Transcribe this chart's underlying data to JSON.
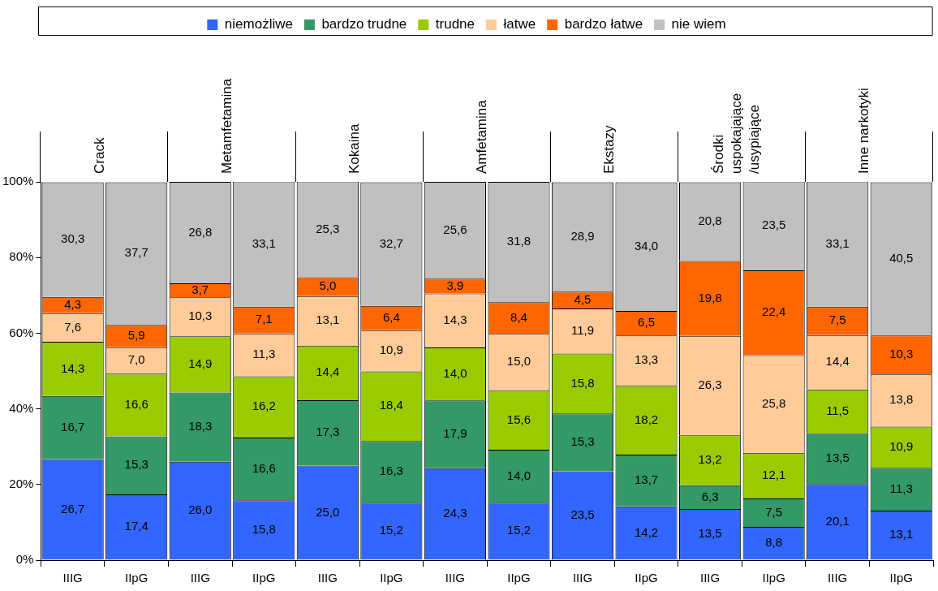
{
  "chart_data": {
    "type": "bar",
    "stacked": true,
    "legend": "top",
    "grid": false,
    "categories": [
      "IIIG",
      "IIpG",
      "IIIG",
      "IIpG",
      "IIIG",
      "IIpG",
      "IIIG",
      "IIpG",
      "IIIG",
      "IIpG",
      "IIIG",
      "IIpG",
      "IIIG",
      "IIpG"
    ],
    "annotations": [
      "Crack",
      "Metamfetamina",
      "Kokaina",
      "Amfetamina",
      "Ekstazy",
      "Środki\nuspokajające\n/usypiające",
      "Inne narkotyki"
    ],
    "ylim": [
      0,
      100
    ],
    "yticks": [
      {
        "value": 0,
        "label": "0%"
      },
      {
        "value": 20,
        "label": "20%"
      },
      {
        "value": 40,
        "label": "40%"
      },
      {
        "value": 60,
        "label": "60%"
      },
      {
        "value": 80,
        "label": "80%"
      },
      {
        "value": 100,
        "label": "100%"
      }
    ],
    "series": [
      {
        "name": "niemożliwe",
        "color": "#3366ff",
        "values": [
          26.7,
          17.4,
          26.0,
          15.8,
          25.0,
          15.2,
          24.3,
          15.2,
          23.5,
          14.2,
          13.5,
          8.8,
          20.1,
          13.1
        ],
        "value_labels": [
          "26,7",
          "17,4",
          "26,0",
          "15,8",
          "25,0",
          "15,2",
          "24,3",
          "15,2",
          "23,5",
          "14,2",
          "13,5",
          "8,8",
          "20,1",
          "13,1"
        ]
      },
      {
        "name": "bardzo trudne",
        "color": "#339966",
        "values": [
          16.7,
          15.3,
          18.3,
          16.6,
          17.3,
          16.3,
          17.9,
          14.0,
          15.3,
          13.7,
          6.3,
          7.5,
          13.5,
          11.3
        ],
        "value_labels": [
          "16,7",
          "15,3",
          "18,3",
          "16,6",
          "17,3",
          "16,3",
          "17,9",
          "14,0",
          "15,3",
          "13,7",
          "6,3",
          "7,5",
          "13,5",
          "11,3"
        ]
      },
      {
        "name": "trudne",
        "color": "#99cc00",
        "values": [
          14.3,
          16.6,
          14.9,
          16.2,
          14.4,
          18.4,
          14.0,
          15.6,
          15.8,
          18.2,
          13.2,
          12.1,
          11.5,
          10.9
        ],
        "value_labels": [
          "14,3",
          "16,6",
          "14,9",
          "16,2",
          "14,4",
          "18,4",
          "14,0",
          "15,6",
          "15,8",
          "18,2",
          "13,2",
          "12,1",
          "11,5",
          "10,9"
        ]
      },
      {
        "name": "łatwe",
        "color": "#ffcc99",
        "values": [
          7.6,
          7.0,
          10.3,
          11.3,
          13.1,
          10.9,
          14.3,
          15.0,
          11.9,
          13.3,
          26.3,
          25.8,
          14.4,
          13.8
        ],
        "value_labels": [
          "7,6",
          "7,0",
          "10,3",
          "11,3",
          "13,1",
          "10,9",
          "14,3",
          "15,0",
          "11,9",
          "13,3",
          "26,3",
          "25,8",
          "14,4",
          "13,8"
        ]
      },
      {
        "name": "bardzo łatwe",
        "color": "#ff6600",
        "values": [
          4.3,
          5.9,
          3.7,
          7.1,
          5.0,
          6.4,
          3.9,
          8.4,
          4.5,
          6.5,
          19.8,
          22.4,
          7.5,
          10.3
        ],
        "value_labels": [
          "4,3",
          "5,9",
          "3,7",
          "7,1",
          "5,0",
          "6,4",
          "3,9",
          "8,4",
          "4,5",
          "6,5",
          "19,8",
          "22,4",
          "7,5",
          "10,3"
        ]
      },
      {
        "name": "nie wiem",
        "color": "#c0c0c0",
        "values": [
          30.3,
          37.7,
          26.8,
          33.1,
          25.3,
          32.7,
          25.6,
          31.8,
          28.9,
          34.0,
          20.8,
          23.5,
          33.1,
          40.5
        ],
        "value_labels": [
          "30,3",
          "37,7",
          "26,8",
          "33,1",
          "25,3",
          "32,7",
          "25,6",
          "31,8",
          "28,9",
          "34,0",
          "20,8",
          "23,5",
          "33,1",
          "40,5"
        ]
      }
    ]
  }
}
